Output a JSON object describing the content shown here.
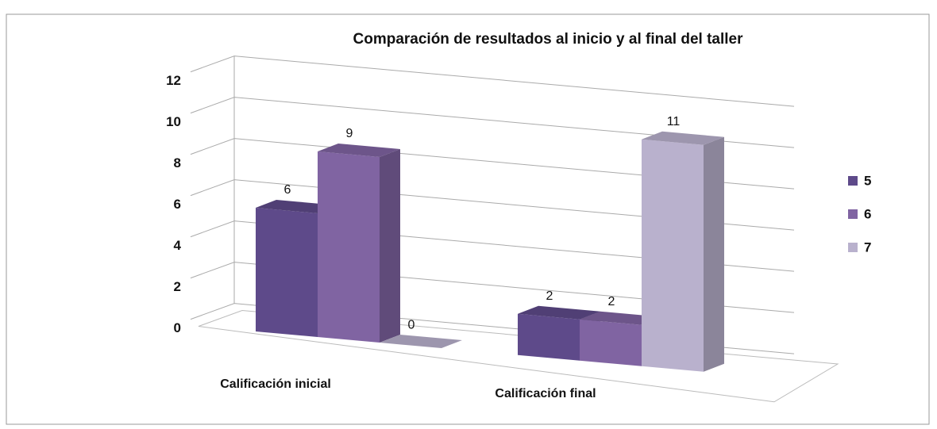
{
  "chart_data": {
    "type": "bar3d",
    "title": "Comparación de resultados al inicio y al final del taller",
    "categories": [
      "Calificación inicial",
      "Calificación final"
    ],
    "series": [
      {
        "name": "5",
        "color": "#5e4a8a",
        "values": [
          6,
          2
        ]
      },
      {
        "name": "6",
        "color": "#8064a2",
        "values": [
          9,
          2
        ]
      },
      {
        "name": "7",
        "color": "#b9b1cd",
        "values": [
          0,
          11
        ]
      }
    ],
    "ylim": [
      0,
      12
    ],
    "yticks": [
      0,
      2,
      4,
      6,
      8,
      10,
      12
    ],
    "grid": true,
    "legend": "right"
  }
}
